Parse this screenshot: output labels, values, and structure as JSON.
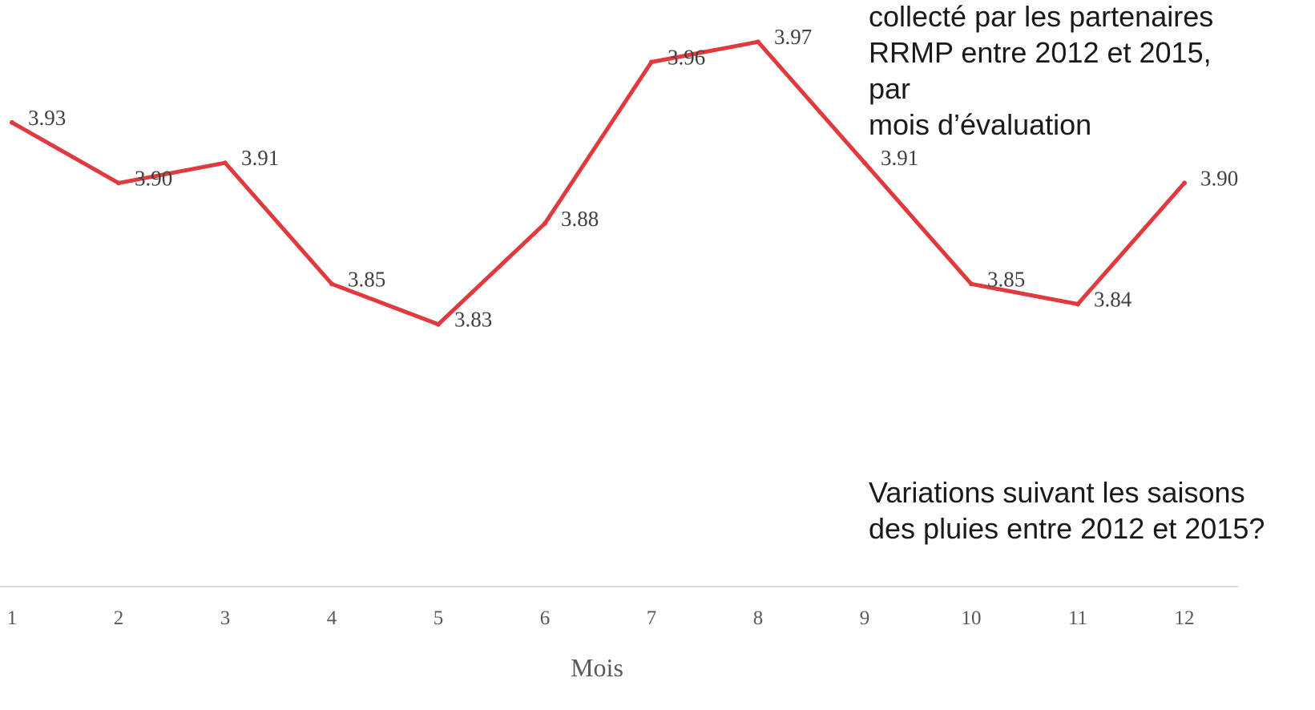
{
  "chart_data": {
    "type": "line",
    "xlabel": "Mois",
    "ylabel": "",
    "categories": [
      "1",
      "2",
      "3",
      "4",
      "5",
      "6",
      "7",
      "8",
      "9",
      "10",
      "11",
      "12"
    ],
    "series": [
      {
        "values": [
          3.93,
          3.9,
          3.91,
          3.85,
          3.83,
          3.88,
          3.96,
          3.97,
          3.91,
          3.85,
          3.84,
          3.9
        ],
        "labels": [
          "3.93",
          "3.90",
          "3.91",
          "3.85",
          "3.83",
          "3.88",
          "3.96",
          "3.97",
          "3.91",
          "3.85",
          "3.84",
          "3.90"
        ],
        "color": "#e0393e"
      }
    ],
    "ylim": [
      3.7,
      3.98
    ],
    "grid": false,
    "annotations": [
      "collecté par les partenaires\nRRMP entre 2012 et 2015, par\nmois d’évaluation",
      "Variations suivant les saisons\ndes pluies entre 2012 et 2015?"
    ]
  },
  "colors": {
    "line": "#e0393e",
    "axis": "#d9d9d9",
    "tick_text": "#595959",
    "label_text": "#404040",
    "annotation_text": "#1a1a1a"
  }
}
